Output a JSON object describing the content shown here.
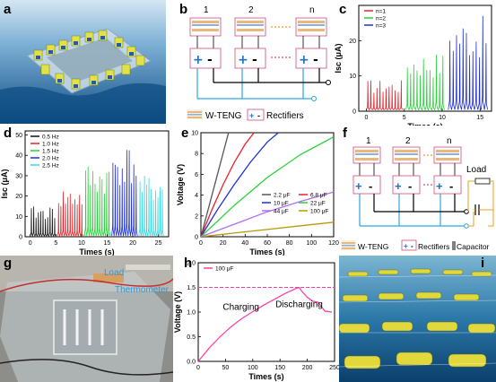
{
  "panels": {
    "a": {
      "label": "a"
    },
    "b": {
      "label": "b",
      "unit_labels": [
        "1",
        "2",
        "n"
      ],
      "legend_teng": "W-TENG",
      "legend_rect": "Rectifiers"
    },
    "c": {
      "label": "c"
    },
    "d": {
      "label": "d"
    },
    "e": {
      "label": "e"
    },
    "f": {
      "label": "f",
      "unit_labels": [
        "1",
        "2",
        "n"
      ],
      "load_label": "Load",
      "legend_teng": "W-TENG",
      "legend_rect": "Rectifiers",
      "legend_cap": "Capacitor"
    },
    "g": {
      "label": "g",
      "photo_labels": [
        "Load",
        "Thermometer"
      ]
    },
    "h": {
      "label": "h",
      "charging": "Charging",
      "discharging": "Discharging"
    },
    "i": {
      "label": "i"
    }
  },
  "colors": {
    "red": "#e8232a",
    "green": "#2bd13b",
    "blue": "#1f2fd8",
    "black": "#111111",
    "cyan": "#37d9e0",
    "pink": "#ff3aa6",
    "gray": "#555555",
    "purple": "#b36cf0",
    "olive": "#b79a0a",
    "water": "#1d6fb0"
  },
  "chart_data": [
    {
      "id": "c",
      "type": "line",
      "xlabel": "Times (s)",
      "ylabel": "Isc (μA)",
      "xlim": [
        -1,
        16.5
      ],
      "ylim": [
        0,
        30
      ],
      "xticks": [
        0,
        5,
        10,
        15
      ],
      "yticks": [
        0,
        10,
        20
      ],
      "series": [
        {
          "name": "n=1",
          "color": "#e8232a",
          "x_range": [
            0,
            4.8
          ],
          "peaks": 12,
          "amp": 9
        },
        {
          "name": "n=2",
          "color": "#2bd13b",
          "x_range": [
            5.2,
            10.3
          ],
          "peaks": 12,
          "amp": 17
        },
        {
          "name": "n=3",
          "color": "#1f2fd8",
          "x_range": [
            10.8,
            16
          ],
          "peaks": 12,
          "amp": 27
        }
      ]
    },
    {
      "id": "d",
      "type": "line",
      "xlabel": "Times (s)",
      "ylabel": "Isc (μA)",
      "xlim": [
        -1,
        27
      ],
      "ylim": [
        0,
        52
      ],
      "xticks": [
        0,
        5,
        10,
        15,
        20,
        25
      ],
      "yticks": [
        0,
        10,
        20,
        30,
        40,
        50
      ],
      "series": [
        {
          "name": "0.5 Hz",
          "color": "#111111",
          "x_range": [
            0,
            5
          ],
          "peaks": 11,
          "amp": 15
        },
        {
          "name": "1.0 Hz",
          "color": "#e8232a",
          "x_range": [
            5.3,
            10.3
          ],
          "peaks": 11,
          "amp": 24
        },
        {
          "name": "1.5 Hz",
          "color": "#2bd13b",
          "x_range": [
            10.6,
            15.6
          ],
          "peaks": 11,
          "amp": 36
        },
        {
          "name": "2.0 Hz",
          "color": "#1f2fd8",
          "x_range": [
            15.9,
            20.9
          ],
          "peaks": 11,
          "amp": 45
        },
        {
          "name": "2.5 Hz",
          "color": "#37d9e0",
          "x_range": [
            21.2,
            26
          ],
          "peaks": 11,
          "amp": 30
        }
      ]
    },
    {
      "id": "e",
      "type": "line",
      "xlabel": "Times (s)",
      "ylabel": "Voltage (V)",
      "xlim": [
        0,
        120
      ],
      "ylim": [
        0,
        10
      ],
      "xticks": [
        0,
        20,
        40,
        60,
        80,
        100,
        120
      ],
      "yticks": [
        0,
        2,
        4,
        6,
        8,
        10
      ],
      "series": [
        {
          "name": "2.2 μF",
          "color": "#555555",
          "x": [
            0,
            25
          ],
          "y": [
            0,
            10
          ]
        },
        {
          "name": "6.8 μF",
          "color": "#e8232a",
          "x": [
            0,
            10,
            20,
            30,
            40,
            48
          ],
          "y": [
            0,
            2.6,
            5,
            7.1,
            8.9,
            10
          ]
        },
        {
          "name": "10 μF",
          "color": "#1f2fd8",
          "x": [
            0,
            15,
            30,
            45,
            60,
            70
          ],
          "y": [
            0,
            2.6,
            5,
            7.2,
            9.1,
            10
          ]
        },
        {
          "name": "22 μF",
          "color": "#2bd13b",
          "x": [
            0,
            30,
            60,
            90,
            120
          ],
          "y": [
            0,
            3,
            5.7,
            7.9,
            9.6
          ]
        },
        {
          "name": "44 μF",
          "color": "#b36cf0",
          "x": [
            0,
            30,
            60,
            90,
            120
          ],
          "y": [
            0,
            1.2,
            2.4,
            3.4,
            4.3
          ]
        },
        {
          "name": "100 μF",
          "color": "#b79a0a",
          "x": [
            0,
            30,
            60,
            90,
            120
          ],
          "y": [
            0,
            0.35,
            0.7,
            1.05,
            1.4
          ]
        }
      ]
    },
    {
      "id": "h",
      "type": "line",
      "xlabel": "Times (s)",
      "ylabel": "Voltage (V)",
      "xlim": [
        0,
        250
      ],
      "ylim": [
        0,
        2.0
      ],
      "xticks": [
        0,
        50,
        100,
        150,
        200,
        250
      ],
      "yticks": [
        0.0,
        0.5,
        1.0,
        1.5,
        2.0
      ],
      "threshold": 1.5,
      "series": [
        {
          "name": "100 μF",
          "color": "#ff3aa6",
          "x": [
            0,
            20,
            40,
            60,
            80,
            100,
            120,
            140,
            160,
            180,
            185,
            190,
            195,
            200,
            210,
            220,
            232,
            245
          ],
          "y": [
            0,
            0.27,
            0.5,
            0.7,
            0.87,
            1.01,
            1.14,
            1.26,
            1.38,
            1.48,
            1.5,
            1.42,
            1.36,
            1.3,
            1.22,
            1.2,
            1.02,
            1.0
          ]
        }
      ]
    }
  ]
}
